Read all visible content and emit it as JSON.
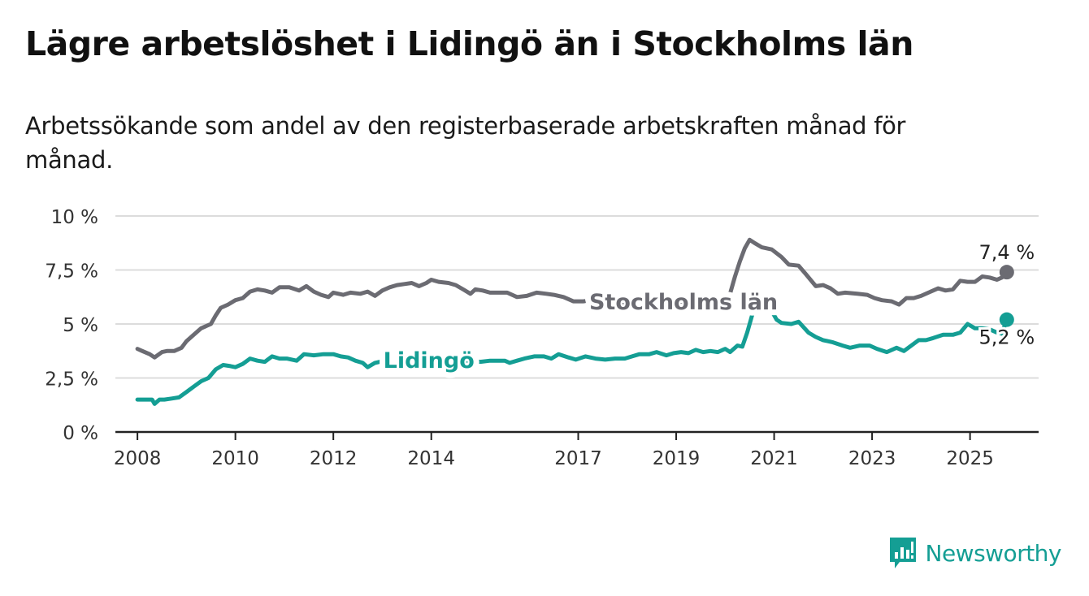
{
  "title": "Lägre arbetslöshet i Lidingö än i Stockholms län",
  "subtitle": "Arbetssökande som andel av den registerbaserade arbetskraften månad för månad.",
  "brand": {
    "name": "Newsworthy",
    "icon": "bar-chart-logo-icon",
    "color": "#149e94"
  },
  "chart_data": {
    "type": "line",
    "title": "Lägre arbetslöshet i Lidingö än i Stockholms län",
    "xlabel": "",
    "ylabel": "",
    "ylim": [
      0,
      10
    ],
    "xlim": [
      2007.55,
      2026.4
    ],
    "y_ticks": [
      {
        "value": 0,
        "label": "0 %"
      },
      {
        "value": 2.5,
        "label": "2,5 %"
      },
      {
        "value": 5,
        "label": "5 %"
      },
      {
        "value": 7.5,
        "label": "7,5 %"
      },
      {
        "value": 10,
        "label": "10 %"
      }
    ],
    "x_ticks": [
      {
        "value": 2008,
        "label": "2008"
      },
      {
        "value": 2010,
        "label": "2010"
      },
      {
        "value": 2012,
        "label": "2012"
      },
      {
        "value": 2014,
        "label": "2014"
      },
      {
        "value": 2017,
        "label": "2017"
      },
      {
        "value": 2019,
        "label": "2019"
      },
      {
        "value": 2021,
        "label": "2021"
      },
      {
        "value": 2023,
        "label": "2023"
      },
      {
        "value": 2025,
        "label": "2025"
      }
    ],
    "grid": true,
    "series": [
      {
        "name": "Stockholms län",
        "color": "#6b6b72",
        "end_label": "7,4 %",
        "points": [
          [
            2008.0,
            3.85
          ],
          [
            2008.1,
            3.75
          ],
          [
            2008.25,
            3.6
          ],
          [
            2008.35,
            3.45
          ],
          [
            2008.5,
            3.7
          ],
          [
            2008.6,
            3.75
          ],
          [
            2008.75,
            3.75
          ],
          [
            2008.9,
            3.9
          ],
          [
            2009.0,
            4.2
          ],
          [
            2009.15,
            4.5
          ],
          [
            2009.3,
            4.8
          ],
          [
            2009.5,
            5.0
          ],
          [
            2009.6,
            5.4
          ],
          [
            2009.7,
            5.75
          ],
          [
            2009.85,
            5.9
          ],
          [
            2010.0,
            6.1
          ],
          [
            2010.15,
            6.2
          ],
          [
            2010.3,
            6.5
          ],
          [
            2010.45,
            6.6
          ],
          [
            2010.6,
            6.55
          ],
          [
            2010.75,
            6.45
          ],
          [
            2010.9,
            6.7
          ],
          [
            2011.1,
            6.7
          ],
          [
            2011.3,
            6.55
          ],
          [
            2011.45,
            6.75
          ],
          [
            2011.6,
            6.5
          ],
          [
            2011.75,
            6.35
          ],
          [
            2011.9,
            6.25
          ],
          [
            2012.0,
            6.45
          ],
          [
            2012.2,
            6.35
          ],
          [
            2012.35,
            6.45
          ],
          [
            2012.55,
            6.4
          ],
          [
            2012.7,
            6.5
          ],
          [
            2012.85,
            6.3
          ],
          [
            2013.0,
            6.55
          ],
          [
            2013.15,
            6.7
          ],
          [
            2013.3,
            6.8
          ],
          [
            2013.45,
            6.85
          ],
          [
            2013.6,
            6.9
          ],
          [
            2013.75,
            6.75
          ],
          [
            2013.9,
            6.9
          ],
          [
            2014.0,
            7.05
          ],
          [
            2014.15,
            6.95
          ],
          [
            2014.35,
            6.9
          ],
          [
            2014.5,
            6.8
          ],
          [
            2014.65,
            6.6
          ],
          [
            2014.8,
            6.4
          ],
          [
            2014.9,
            6.6
          ],
          [
            2015.05,
            6.55
          ],
          [
            2015.2,
            6.45
          ],
          [
            2015.4,
            6.45
          ],
          [
            2015.55,
            6.45
          ],
          [
            2015.75,
            6.25
          ],
          [
            2015.95,
            6.3
          ],
          [
            2016.15,
            6.45
          ],
          [
            2016.35,
            6.4
          ],
          [
            2016.5,
            6.35
          ],
          [
            2016.7,
            6.25
          ],
          [
            2016.9,
            6.05
          ],
          [
            2017.1,
            6.05
          ],
          [
            2017.3,
            6.1
          ],
          [
            2017.5,
            6.05
          ],
          [
            2017.7,
            6.0
          ],
          [
            2017.85,
            5.95
          ],
          [
            2018.0,
            6.05
          ],
          [
            2018.2,
            6.1
          ],
          [
            2018.4,
            6.05
          ],
          [
            2018.55,
            6.1
          ],
          [
            2018.75,
            6.0
          ],
          [
            2018.9,
            6.1
          ],
          [
            2019.05,
            6.05
          ],
          [
            2019.25,
            6.0
          ],
          [
            2019.45,
            6.05
          ],
          [
            2019.6,
            6.2
          ],
          [
            2019.75,
            6.0
          ],
          [
            2019.9,
            5.95
          ],
          [
            2020.0,
            6.0
          ],
          [
            2020.1,
            6.4
          ],
          [
            2020.2,
            7.2
          ],
          [
            2020.3,
            7.9
          ],
          [
            2020.4,
            8.5
          ],
          [
            2020.5,
            8.9
          ],
          [
            2020.6,
            8.75
          ],
          [
            2020.75,
            8.55
          ],
          [
            2020.95,
            8.45
          ],
          [
            2021.15,
            8.1
          ],
          [
            2021.3,
            7.75
          ],
          [
            2021.5,
            7.7
          ],
          [
            2021.65,
            7.3
          ],
          [
            2021.85,
            6.75
          ],
          [
            2022.0,
            6.8
          ],
          [
            2022.15,
            6.65
          ],
          [
            2022.3,
            6.4
          ],
          [
            2022.45,
            6.45
          ],
          [
            2022.7,
            6.4
          ],
          [
            2022.9,
            6.35
          ],
          [
            2023.05,
            6.2
          ],
          [
            2023.2,
            6.1
          ],
          [
            2023.4,
            6.05
          ],
          [
            2023.55,
            5.9
          ],
          [
            2023.7,
            6.2
          ],
          [
            2023.85,
            6.2
          ],
          [
            2024.0,
            6.3
          ],
          [
            2024.15,
            6.45
          ],
          [
            2024.35,
            6.65
          ],
          [
            2024.5,
            6.55
          ],
          [
            2024.65,
            6.6
          ],
          [
            2024.8,
            7.0
          ],
          [
            2024.95,
            6.95
          ],
          [
            2025.1,
            6.95
          ],
          [
            2025.25,
            7.2
          ],
          [
            2025.4,
            7.15
          ],
          [
            2025.55,
            7.05
          ],
          [
            2025.65,
            7.15
          ],
          [
            2025.75,
            7.4
          ]
        ]
      },
      {
        "name": "Lidingö",
        "color": "#149e94",
        "end_label": "5,2 %",
        "points": [
          [
            2008.0,
            1.5
          ],
          [
            2008.15,
            1.5
          ],
          [
            2008.3,
            1.5
          ],
          [
            2008.35,
            1.3
          ],
          [
            2008.45,
            1.5
          ],
          [
            2008.55,
            1.5
          ],
          [
            2008.7,
            1.55
          ],
          [
            2008.85,
            1.6
          ],
          [
            2009.0,
            1.85
          ],
          [
            2009.15,
            2.1
          ],
          [
            2009.3,
            2.35
          ],
          [
            2009.45,
            2.5
          ],
          [
            2009.6,
            2.9
          ],
          [
            2009.75,
            3.1
          ],
          [
            2009.9,
            3.05
          ],
          [
            2010.0,
            3.0
          ],
          [
            2010.15,
            3.15
          ],
          [
            2010.3,
            3.4
          ],
          [
            2010.45,
            3.3
          ],
          [
            2010.6,
            3.25
          ],
          [
            2010.75,
            3.5
          ],
          [
            2010.9,
            3.4
          ],
          [
            2011.05,
            3.4
          ],
          [
            2011.25,
            3.3
          ],
          [
            2011.4,
            3.6
          ],
          [
            2011.6,
            3.55
          ],
          [
            2011.8,
            3.6
          ],
          [
            2012.0,
            3.6
          ],
          [
            2012.15,
            3.5
          ],
          [
            2012.3,
            3.45
          ],
          [
            2012.45,
            3.3
          ],
          [
            2012.6,
            3.2
          ],
          [
            2012.7,
            3.0
          ],
          [
            2012.85,
            3.2
          ],
          [
            2013.05,
            3.3
          ],
          [
            2013.2,
            3.35
          ],
          [
            2013.4,
            3.45
          ],
          [
            2013.6,
            3.3
          ],
          [
            2013.8,
            3.4
          ],
          [
            2014.0,
            3.45
          ],
          [
            2014.2,
            3.4
          ],
          [
            2014.4,
            3.35
          ],
          [
            2014.6,
            3.3
          ],
          [
            2014.8,
            3.3
          ],
          [
            2015.0,
            3.25
          ],
          [
            2015.2,
            3.3
          ],
          [
            2015.35,
            3.3
          ],
          [
            2015.5,
            3.3
          ],
          [
            2015.6,
            3.2
          ],
          [
            2015.75,
            3.3
          ],
          [
            2015.9,
            3.4
          ],
          [
            2016.1,
            3.5
          ],
          [
            2016.3,
            3.5
          ],
          [
            2016.45,
            3.4
          ],
          [
            2016.6,
            3.6
          ],
          [
            2016.8,
            3.45
          ],
          [
            2016.95,
            3.35
          ],
          [
            2017.15,
            3.5
          ],
          [
            2017.35,
            3.4
          ],
          [
            2017.55,
            3.35
          ],
          [
            2017.75,
            3.4
          ],
          [
            2017.95,
            3.4
          ],
          [
            2018.1,
            3.5
          ],
          [
            2018.25,
            3.6
          ],
          [
            2018.45,
            3.6
          ],
          [
            2018.6,
            3.7
          ],
          [
            2018.8,
            3.55
          ],
          [
            2018.95,
            3.65
          ],
          [
            2019.1,
            3.7
          ],
          [
            2019.25,
            3.65
          ],
          [
            2019.4,
            3.8
          ],
          [
            2019.55,
            3.7
          ],
          [
            2019.7,
            3.75
          ],
          [
            2019.85,
            3.7
          ],
          [
            2020.0,
            3.85
          ],
          [
            2020.1,
            3.7
          ],
          [
            2020.25,
            4.0
          ],
          [
            2020.35,
            3.95
          ],
          [
            2020.45,
            4.6
          ],
          [
            2020.55,
            5.4
          ],
          [
            2020.65,
            6.2
          ],
          [
            2020.75,
            6.25
          ],
          [
            2020.85,
            5.9
          ],
          [
            2020.95,
            5.6
          ],
          [
            2021.05,
            5.2
          ],
          [
            2021.15,
            5.05
          ],
          [
            2021.35,
            5.0
          ],
          [
            2021.5,
            5.1
          ],
          [
            2021.7,
            4.6
          ],
          [
            2021.85,
            4.4
          ],
          [
            2022.0,
            4.25
          ],
          [
            2022.2,
            4.15
          ],
          [
            2022.4,
            4.0
          ],
          [
            2022.55,
            3.9
          ],
          [
            2022.75,
            4.0
          ],
          [
            2022.95,
            4.0
          ],
          [
            2023.1,
            3.85
          ],
          [
            2023.3,
            3.7
          ],
          [
            2023.5,
            3.9
          ],
          [
            2023.65,
            3.75
          ],
          [
            2023.8,
            4.0
          ],
          [
            2023.95,
            4.25
          ],
          [
            2024.1,
            4.25
          ],
          [
            2024.25,
            4.35
          ],
          [
            2024.45,
            4.5
          ],
          [
            2024.65,
            4.5
          ],
          [
            2024.8,
            4.6
          ],
          [
            2024.95,
            5.0
          ],
          [
            2025.1,
            4.8
          ],
          [
            2025.25,
            4.8
          ],
          [
            2025.4,
            4.75
          ],
          [
            2025.55,
            4.6
          ],
          [
            2025.65,
            4.55
          ],
          [
            2025.75,
            5.2
          ]
        ]
      }
    ],
    "labels": [
      {
        "text": "Stockholms län",
        "series": "Stockholms län",
        "x": 2019.15,
        "y": 6.05
      },
      {
        "text": "Lidingö",
        "series": "Lidingö",
        "x": 2013.95,
        "y": 3.35
      }
    ]
  }
}
